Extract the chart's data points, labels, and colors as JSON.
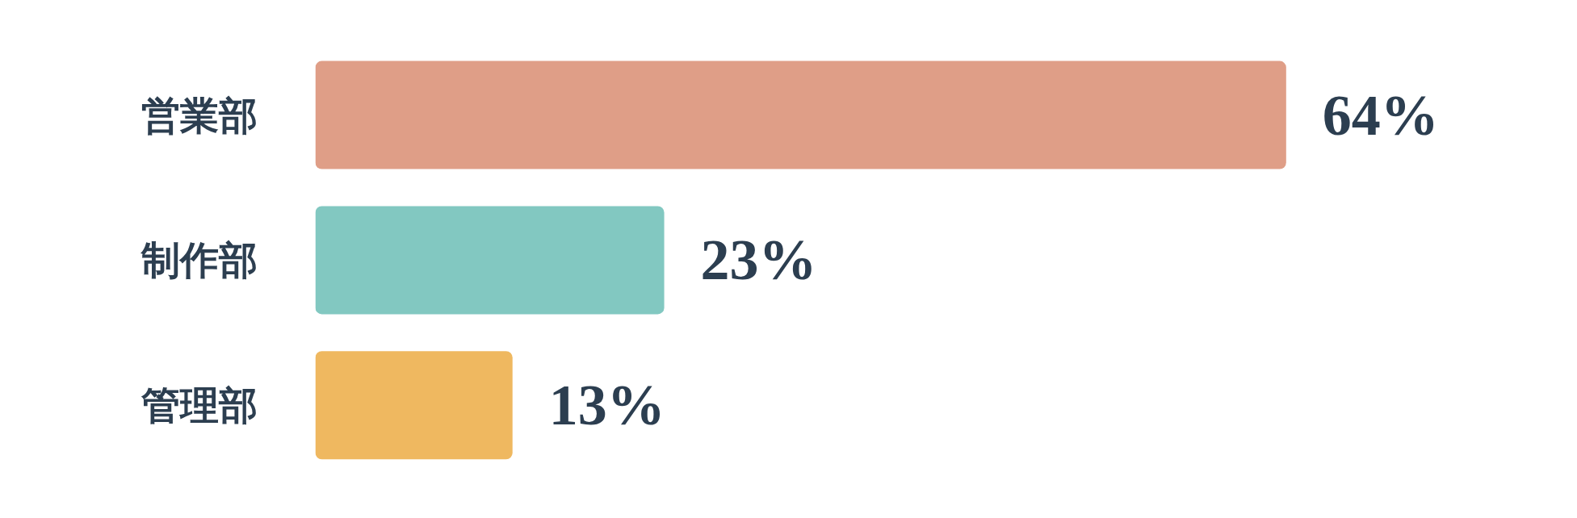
{
  "chart_data": {
    "type": "bar",
    "orientation": "horizontal",
    "categories": [
      "営業部",
      "制作部",
      "管理部"
    ],
    "values": [
      64,
      23,
      13
    ],
    "colors": [
      "#df9e87",
      "#82c8c1",
      "#efb860"
    ],
    "value_labels": [
      "64%",
      "23%",
      "13%"
    ]
  }
}
